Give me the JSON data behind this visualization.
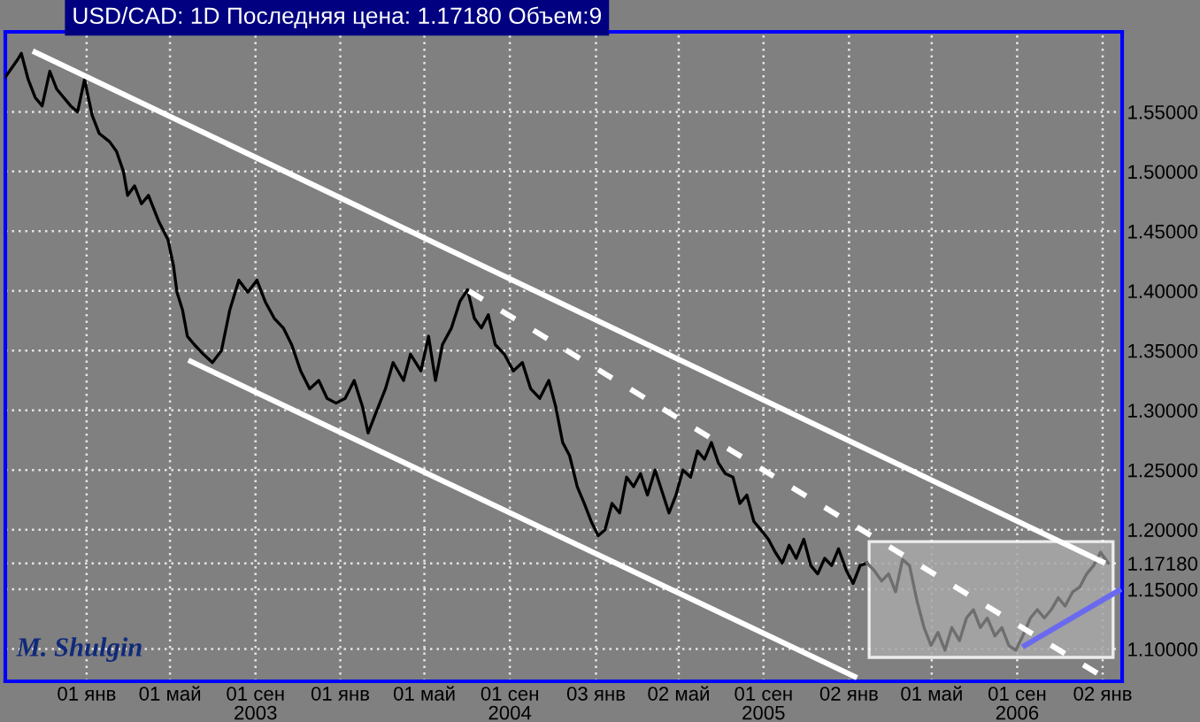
{
  "chart_data": {
    "type": "line",
    "title": "USD/CAD: 1D Последняя цена: 1.17180 Объем:9",
    "annotations": [
      "M. Shulgin"
    ],
    "grid": true,
    "line_style": "solid",
    "marker": "none",
    "xlim": [
      "2002-09-06",
      "2007-01-30"
    ],
    "ylim": [
      1.073,
      1.617
    ],
    "xticks": [
      {
        "value": "2003-01-01",
        "label": "01 янв"
      },
      {
        "value": "2003-05-01",
        "label": "01 май"
      },
      {
        "value": "2003-09-01",
        "label": "01 сен\n2003"
      },
      {
        "value": "2004-01-01",
        "label": "01 янв"
      },
      {
        "value": "2004-05-01",
        "label": "01 май"
      },
      {
        "value": "2004-09-01",
        "label": "01 сен\n2004"
      },
      {
        "value": "2005-01-03",
        "label": "03 янв"
      },
      {
        "value": "2005-05-02",
        "label": "02 май"
      },
      {
        "value": "2005-09-01",
        "label": "01 сен\n2005"
      },
      {
        "value": "2006-01-02",
        "label": "02 янв"
      },
      {
        "value": "2006-05-01",
        "label": "01 май"
      },
      {
        "value": "2006-09-01",
        "label": "01 сен\n2006"
      },
      {
        "value": "2007-01-02",
        "label": "02 янв"
      }
    ],
    "yticks": [
      {
        "value": 1.1,
        "label": "1.10000"
      },
      {
        "value": 1.15,
        "label": "1.15000"
      },
      {
        "value": 1.1718,
        "label": "1.17180"
      },
      {
        "value": 1.2,
        "label": "1.20000"
      },
      {
        "value": 1.25,
        "label": "1.25000"
      },
      {
        "value": 1.3,
        "label": "1.30000"
      },
      {
        "value": 1.35,
        "label": "1.35000"
      },
      {
        "value": 1.4,
        "label": "1.40000"
      },
      {
        "value": 1.45,
        "label": "1.45000"
      },
      {
        "value": 1.5,
        "label": "1.50000"
      },
      {
        "value": 1.55,
        "label": "1.55000"
      }
    ],
    "series": [
      {
        "type": "area",
        "color": "#a8a8a8",
        "x": [
          "2006-01-31",
          "2007-01-17",
          "2007-01-17",
          "2006-01-31"
        ],
        "values": [
          1.19,
          1.19,
          1.093,
          1.093
        ]
      },
      {
        "color": "#000000",
        "x": [
          "2002-09-06",
          "2002-09-24",
          "2002-09-29",
          "2002-10-09",
          "2002-10-19",
          "2002-10-29",
          "2002-11-09",
          "2002-11-19",
          "2002-12-09",
          "2002-12-19",
          "2002-12-29",
          "2003-01-09",
          "2003-01-19",
          "2003-02-03",
          "2003-02-13",
          "2003-02-23",
          "2003-03-01",
          "2003-03-11",
          "2003-03-21",
          "2003-03-31",
          "2003-04-15",
          "2003-04-28",
          "2003-05-06",
          "2003-05-11",
          "2003-05-19",
          "2003-05-26",
          "2003-06-05",
          "2003-06-18",
          "2003-07-01",
          "2003-07-14",
          "2003-07-26",
          "2003-08-08",
          "2003-08-21",
          "2003-09-03",
          "2003-09-15",
          "2003-09-28",
          "2003-10-11",
          "2003-10-23",
          "2003-11-05",
          "2003-11-18",
          "2003-12-01",
          "2003-12-13",
          "2003-12-26",
          "2004-01-08",
          "2004-01-21",
          "2004-02-02",
          "2004-02-10",
          "2004-02-20",
          "2004-03-06",
          "2004-03-17",
          "2004-04-01",
          "2004-04-11",
          "2004-04-26",
          "2004-05-07",
          "2004-05-17",
          "2004-05-27",
          "2004-06-09",
          "2004-06-21",
          "2004-07-02",
          "2004-07-12",
          "2004-07-22",
          "2004-08-01",
          "2004-08-11",
          "2004-08-24",
          "2004-09-06",
          "2004-09-19",
          "2004-10-01",
          "2004-10-14",
          "2004-10-27",
          "2004-11-06",
          "2004-11-16",
          "2004-11-26",
          "2004-12-07",
          "2004-12-17",
          "2004-12-27",
          "2005-01-06",
          "2005-01-16",
          "2005-01-26",
          "2005-02-06",
          "2005-02-16",
          "2005-02-26",
          "2005-03-08",
          "2005-03-18",
          "2005-03-29",
          "2005-04-08",
          "2005-04-18",
          "2005-04-28",
          "2005-05-08",
          "2005-05-19",
          "2005-05-29",
          "2005-06-08",
          "2005-06-18",
          "2005-06-28",
          "2005-07-08",
          "2005-07-19",
          "2005-07-29",
          "2005-08-08",
          "2005-08-18",
          "2005-08-28",
          "2005-09-08",
          "2005-09-18",
          "2005-09-28",
          "2005-10-08",
          "2005-10-18",
          "2005-10-29",
          "2005-11-08",
          "2005-11-18",
          "2005-11-28",
          "2005-12-08",
          "2005-12-18",
          "2005-12-29",
          "2006-01-08",
          "2006-01-18",
          "2006-01-28"
        ],
        "values": [
          1.579,
          1.594,
          1.599,
          1.577,
          1.562,
          1.555,
          1.584,
          1.569,
          1.555,
          1.55,
          1.577,
          1.547,
          1.532,
          1.525,
          1.517,
          1.5,
          1.48,
          1.488,
          1.473,
          1.48,
          1.458,
          1.443,
          1.421,
          1.399,
          1.384,
          1.362,
          1.355,
          1.347,
          1.34,
          1.35,
          1.384,
          1.409,
          1.399,
          1.409,
          1.391,
          1.377,
          1.369,
          1.355,
          1.333,
          1.318,
          1.325,
          1.31,
          1.306,
          1.31,
          1.325,
          1.303,
          1.281,
          1.296,
          1.318,
          1.34,
          1.325,
          1.347,
          1.333,
          1.362,
          1.325,
          1.355,
          1.369,
          1.391,
          1.401,
          1.377,
          1.369,
          1.38,
          1.355,
          1.347,
          1.333,
          1.34,
          1.318,
          1.31,
          1.325,
          1.303,
          1.273,
          1.262,
          1.236,
          1.222,
          1.207,
          1.195,
          1.2,
          1.222,
          1.214,
          1.244,
          1.236,
          1.247,
          1.229,
          1.25,
          1.232,
          1.214,
          1.229,
          1.25,
          1.244,
          1.266,
          1.259,
          1.273,
          1.256,
          1.247,
          1.244,
          1.222,
          1.229,
          1.207,
          1.2,
          1.192,
          1.181,
          1.172,
          1.187,
          1.176,
          1.192,
          1.17,
          1.163,
          1.176,
          1.17,
          1.184,
          1.166,
          1.155,
          1.17,
          1.172
        ]
      },
      {
        "color": "#6e6e6e",
        "x": [
          "2006-01-28",
          "2006-02-07",
          "2006-02-18",
          "2006-02-28",
          "2006-03-10",
          "2006-03-20",
          "2006-03-30",
          "2006-04-10",
          "2006-04-20",
          "2006-04-30",
          "2006-05-10",
          "2006-05-20",
          "2006-05-30",
          "2006-06-10",
          "2006-06-20",
          "2006-06-30",
          "2006-07-10",
          "2006-07-20",
          "2006-07-31",
          "2006-08-10",
          "2006-08-20",
          "2006-08-30",
          "2006-09-09",
          "2006-09-20",
          "2006-09-30",
          "2006-10-10",
          "2006-10-20",
          "2006-10-30",
          "2006-11-09",
          "2006-11-20",
          "2006-11-30",
          "2006-12-10",
          "2006-12-20",
          "2006-12-30",
          "2007-01-10"
        ],
        "values": [
          1.172,
          1.166,
          1.157,
          1.163,
          1.148,
          1.175,
          1.17,
          1.14,
          1.118,
          1.103,
          1.114,
          1.099,
          1.118,
          1.107,
          1.126,
          1.133,
          1.118,
          1.126,
          1.111,
          1.118,
          1.103,
          1.099,
          1.111,
          1.126,
          1.133,
          1.126,
          1.133,
          1.143,
          1.136,
          1.148,
          1.152,
          1.163,
          1.17,
          1.181,
          1.172
        ]
      },
      {
        "color": "#ffffff",
        "x": [
          "2002-10-19",
          "2007-01-02"
        ],
        "values": [
          1.6,
          1.173
        ]
      },
      {
        "color": "#ffffff",
        "x": [
          "2003-05-31",
          "2006-01-10"
        ],
        "values": [
          1.341,
          1.077
        ]
      },
      {
        "color": "#ffffff",
        "line_style": "dashed",
        "x": [
          "2004-07-04",
          "2007-01-02"
        ],
        "values": [
          1.4,
          1.077
        ]
      },
      {
        "color": "#6a6af0",
        "x": [
          "2006-09-12",
          "2007-01-25"
        ],
        "values": [
          1.103,
          1.149
        ]
      }
    ]
  }
}
